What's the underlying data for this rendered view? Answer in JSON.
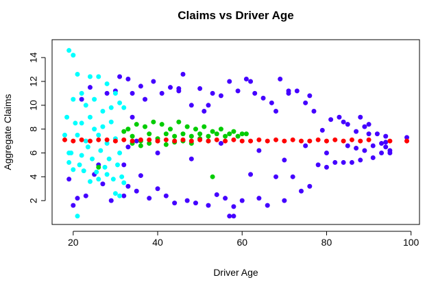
{
  "chart_data": {
    "type": "scatter",
    "title": "Claims vs Driver Age",
    "xlabel": "Driver Age",
    "ylabel": "Aggregate Claims",
    "xlim": [
      15,
      102
    ],
    "ylim": [
      0,
      15.5
    ],
    "x_ticks": [
      20,
      40,
      60,
      80,
      100
    ],
    "y_ticks": [
      2,
      4,
      6,
      8,
      10,
      12,
      14
    ],
    "x_tick_labels": [
      "20",
      "40",
      "60",
      "80",
      "100"
    ],
    "y_tick_labels": [
      "2",
      "4",
      "6",
      "8",
      "10",
      "12",
      "14"
    ],
    "grid": false,
    "legend": "none",
    "series": [
      {
        "color": "#4400ff",
        "marker": "circle",
        "x": [
          19,
          20,
          21,
          22,
          23,
          24,
          25,
          26,
          27,
          28,
          29,
          30,
          31,
          32,
          32,
          33,
          33,
          34,
          34,
          35,
          36,
          36,
          37,
          38,
          39,
          40,
          41,
          42,
          43,
          44,
          45,
          46,
          47,
          48,
          49,
          50,
          51,
          52,
          53,
          54,
          55,
          56,
          57,
          58,
          59,
          60,
          61,
          62,
          63,
          64,
          65,
          66,
          67,
          68,
          69,
          70,
          71,
          72,
          73,
          74,
          75,
          76,
          77,
          78,
          79,
          80,
          81,
          82,
          83,
          84,
          85,
          86,
          87,
          88,
          89,
          90,
          91,
          92,
          93,
          94,
          95,
          99,
          57,
          58,
          45,
          52,
          62,
          68,
          71,
          76,
          88,
          90,
          33,
          35,
          40,
          48,
          55,
          64,
          70,
          75,
          80,
          84,
          85,
          87,
          89,
          91,
          93,
          94,
          94,
          95
        ],
        "y": [
          3.8,
          1.6,
          2.2,
          10.5,
          2.4,
          11.5,
          4.2,
          5.0,
          3.4,
          11.0,
          2.0,
          11.2,
          12.4,
          2.4,
          5.0,
          12.2,
          3.2,
          11.0,
          9.0,
          2.8,
          11.6,
          4.1,
          10.5,
          2.2,
          12.0,
          3.0,
          11.0,
          2.4,
          11.5,
          1.8,
          11.4,
          12.6,
          2.0,
          10.0,
          1.8,
          11.4,
          9.5,
          1.6,
          11.0,
          2.5,
          10.8,
          2.2,
          12.0,
          1.5,
          11.2,
          2.0,
          12.2,
          4.2,
          11.0,
          2.2,
          10.6,
          1.6,
          10.2,
          4.0,
          12.2,
          2.0,
          11.0,
          4.0,
          11.2,
          2.8,
          10.2,
          3.2,
          9.5,
          5.0,
          7.9,
          4.8,
          8.8,
          5.2,
          9.0,
          8.6,
          8.4,
          5.2,
          7.8,
          5.4,
          8.2,
          7.6,
          5.6,
          7.6,
          6.0,
          7.4,
          6.2,
          7.3,
          0.7,
          0.7,
          11.2,
          10.0,
          12.0,
          9.5,
          11.2,
          10.8,
          9.0,
          8.4,
          6.5,
          7.0,
          6.0,
          5.5,
          6.8,
          6.2,
          5.4,
          6.6,
          6.0,
          5.2,
          6.6,
          6.4,
          6.2,
          6.6,
          6.8,
          6.5,
          6.9,
          6.0
        ]
      },
      {
        "color": "#00cc00",
        "marker": "circle",
        "x": [
          32,
          33,
          34,
          35,
          36,
          37,
          38,
          39,
          40,
          41,
          42,
          43,
          44,
          45,
          46,
          47,
          48,
          49,
          50,
          51,
          52,
          53,
          54,
          55,
          56,
          57,
          58,
          59,
          60,
          61,
          34,
          36,
          38,
          40,
          42,
          44,
          46,
          48,
          50,
          52,
          26,
          53
        ],
        "y": [
          7.8,
          8.0,
          7.4,
          8.4,
          7.0,
          8.2,
          7.6,
          8.6,
          7.2,
          8.4,
          7.6,
          8.0,
          7.4,
          8.6,
          7.6,
          8.2,
          7.4,
          8.0,
          7.6,
          8.2,
          7.4,
          7.8,
          7.6,
          8.0,
          7.4,
          7.6,
          7.8,
          7.4,
          7.6,
          7.6,
          6.8,
          6.6,
          6.8,
          7.0,
          6.7,
          6.9,
          7.0,
          6.8,
          7.2,
          7.0,
          4.8,
          4.0
        ]
      },
      {
        "color": "#00ffff",
        "marker": "circle",
        "x": [
          18,
          18.5,
          19,
          19.5,
          20,
          20.5,
          21,
          21.5,
          22,
          22.5,
          23,
          23.5,
          24,
          24.5,
          25,
          25.5,
          26,
          26.5,
          27,
          27.5,
          28,
          28.5,
          29,
          29.5,
          30,
          30.5,
          31,
          31.5,
          32,
          19,
          20,
          21,
          22,
          23,
          24,
          25,
          26,
          27,
          28,
          29,
          30,
          31,
          19,
          20,
          21,
          22,
          24,
          26,
          28,
          30,
          31,
          32
        ],
        "y": [
          7.5,
          9.0,
          14.6,
          6.0,
          14.2,
          8.5,
          12.6,
          5.0,
          11.0,
          4.5,
          10.0,
          6.5,
          12.4,
          5.5,
          10.5,
          4.4,
          12.4,
          6.2,
          9.5,
          4.8,
          11.8,
          5.5,
          9.8,
          3.8,
          11.0,
          5.0,
          10.2,
          4.0,
          9.8,
          6.0,
          10.5,
          7.5,
          8.5,
          7.0,
          9.0,
          8.0,
          7.5,
          8.2,
          6.8,
          8.6,
          7.2,
          6.0,
          5.2,
          4.6,
          0.7,
          5.8,
          3.6,
          3.8,
          4.2,
          2.6,
          2.4,
          3.5
        ]
      },
      {
        "color": "#ff0000",
        "marker": "circle",
        "x": [
          18,
          20,
          22,
          24,
          26,
          28,
          30,
          32,
          34,
          36,
          38,
          40,
          42,
          44,
          46,
          48,
          50,
          52,
          54,
          56,
          58,
          60,
          62,
          64,
          66,
          68,
          70,
          72,
          74,
          76,
          78,
          80,
          82,
          84,
          86,
          88,
          90,
          95,
          99
        ],
        "y": [
          7.1,
          7.0,
          7.1,
          7.0,
          7.1,
          7.1,
          7.0,
          7.1,
          7.0,
          7.1,
          7.1,
          7.0,
          7.1,
          7.0,
          7.1,
          7.0,
          7.1,
          7.0,
          7.1,
          7.0,
          7.1,
          7.0,
          7.0,
          7.1,
          7.0,
          7.1,
          7.0,
          7.1,
          7.0,
          7.0,
          7.1,
          7.0,
          7.1,
          7.0,
          7.1,
          7.0,
          7.1,
          7.0,
          7.0
        ]
      }
    ]
  }
}
